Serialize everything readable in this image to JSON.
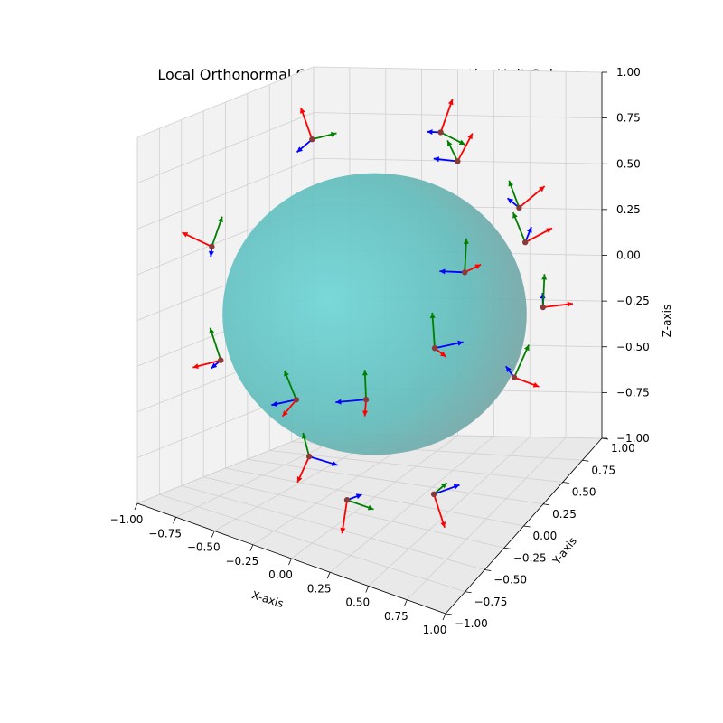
{
  "chart_data": {
    "type": "3d-quiver",
    "title": "Local Orthonormal Coordinate Systems on the Unit Sphere",
    "xlabel": "X-axis",
    "ylabel": "Y-axis",
    "zlabel": "Z-axis",
    "xlim": [
      -1,
      1
    ],
    "ylim": [
      -1,
      1
    ],
    "zlim": [
      -1,
      1
    ],
    "xticks": [
      "−1.00",
      "−0.75",
      "−0.50",
      "−0.25",
      "0.00",
      "0.25",
      "0.50",
      "0.75",
      "1.00"
    ],
    "yticks": [
      "−1.00",
      "−0.75",
      "−0.50",
      "−0.25",
      "0.00",
      "0.25",
      "0.50",
      "0.75",
      "1.00"
    ],
    "zticks": [
      "−1.00",
      "−0.75",
      "−0.50",
      "−0.25",
      "0.00",
      "0.25",
      "0.50",
      "0.75",
      "1.00"
    ],
    "grid": true,
    "surface": {
      "shape": "unit sphere",
      "color": "#5fc8c8"
    },
    "vector_colors": {
      "normal": "#ff0000",
      "tangent_1": "#0000ff",
      "tangent_2": "#008000"
    },
    "point_color": "#8b3a3a",
    "points": [
      [
        0.7,
        -0.6,
        0.2
      ],
      [
        -0.75,
        -0.4,
        0.3
      ],
      [
        0.1,
        0.8,
        0.55
      ],
      [
        0.55,
        0.7,
        0.35
      ],
      [
        0.85,
        0.25,
        0.4
      ],
      [
        0.9,
        0.5,
        -0.05
      ],
      [
        0.05,
        0.95,
        -0.1
      ],
      [
        -0.35,
        -0.1,
        0.9
      ],
      [
        0.25,
        0.35,
        0.9
      ],
      [
        0.55,
        -0.3,
        -0.75
      ],
      [
        0.6,
        0.6,
        -0.5
      ],
      [
        -0.1,
        -0.15,
        -0.98
      ],
      [
        -0.4,
        0.6,
        -0.7
      ],
      [
        -0.7,
        0.3,
        -0.65
      ],
      [
        -0.9,
        -0.2,
        -0.35
      ],
      [
        0.05,
        -0.85,
        -0.45
      ]
    ]
  }
}
